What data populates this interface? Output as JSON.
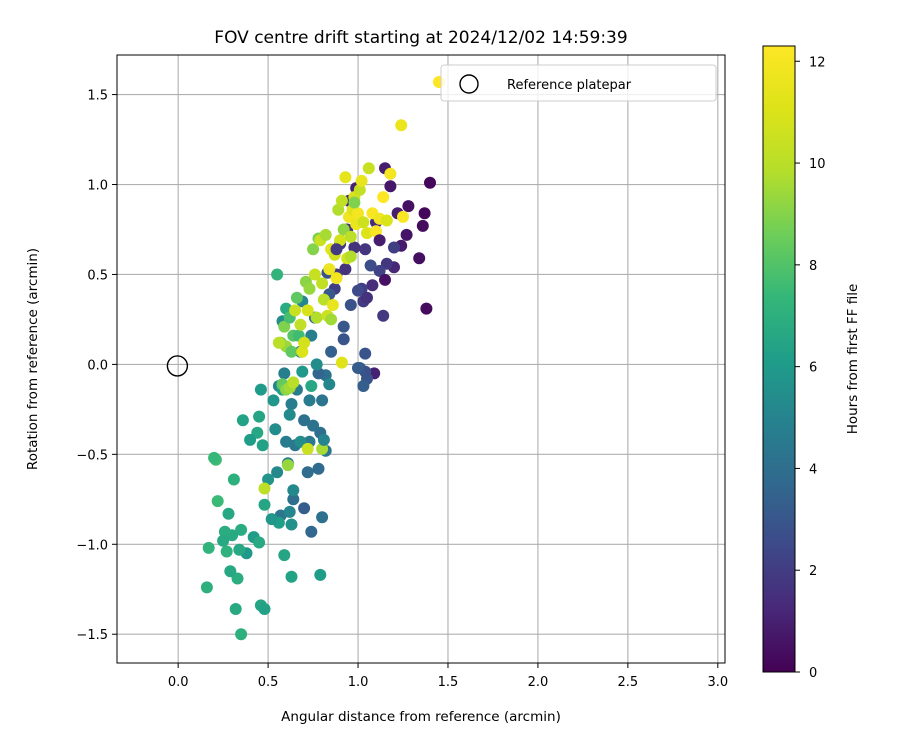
{
  "chart_data": {
    "type": "scatter",
    "title": "FOV centre drift starting at 2024/12/02 14:59:39",
    "xlabel": "Angular distance from reference (arcmin)",
    "ylabel": "Rotation from reference (arcmin)",
    "xlim": [
      -0.34,
      3.04
    ],
    "ylim": [
      -1.66,
      1.72
    ],
    "x_ticks": [
      0.0,
      0.5,
      1.0,
      1.5,
      2.0,
      2.5,
      3.0
    ],
    "x_tick_labels": [
      "0.0",
      "0.5",
      "1.0",
      "1.5",
      "2.0",
      "2.5",
      "3.0"
    ],
    "y_ticks": [
      -1.5,
      -1.0,
      -0.5,
      0.0,
      0.5,
      1.0,
      1.5
    ],
    "y_tick_labels": [
      "−1.5",
      "−1.0",
      "−0.5",
      "0.0",
      "0.5",
      "1.0",
      "1.5"
    ],
    "grid": true,
    "legend": {
      "position": "top-right",
      "entries": [
        "Reference platepar"
      ]
    },
    "reference_point": {
      "x": 0.0,
      "y": 0.0,
      "label": "Reference platepar"
    },
    "colorbar": {
      "label": "Hours from first FF file",
      "colormap": "viridis",
      "range": [
        0,
        12.3
      ],
      "ticks": [
        0,
        2,
        4,
        6,
        8,
        10,
        12
      ],
      "tick_labels": [
        "0",
        "2",
        "4",
        "6",
        "8",
        "10",
        "12"
      ]
    },
    "series": [
      {
        "columns": [
          "x",
          "y",
          "hours"
        ],
        "points": [
          [
            1.4,
            1.01,
            0.2
          ],
          [
            1.38,
            0.31,
            0.3
          ],
          [
            1.37,
            0.84,
            0.2
          ],
          [
            1.36,
            0.77,
            0.3
          ],
          [
            1.34,
            0.59,
            0.4
          ],
          [
            1.28,
            0.88,
            0.5
          ],
          [
            1.27,
            0.72,
            0.6
          ],
          [
            1.24,
            0.66,
            0.8
          ],
          [
            1.22,
            0.84,
            0.9
          ],
          [
            1.2,
            0.54,
            1.2
          ],
          [
            1.18,
            0.99,
            0.7
          ],
          [
            1.16,
            0.56,
            1.8
          ],
          [
            1.15,
            1.09,
            0.9
          ],
          [
            1.14,
            0.27,
            1.8
          ],
          [
            1.12,
            0.52,
            2.2
          ],
          [
            1.1,
            0.79,
            1.3
          ],
          [
            1.09,
            -0.05,
            1.0
          ],
          [
            1.08,
            0.44,
            1.4
          ],
          [
            1.07,
            0.55,
            2.6
          ],
          [
            1.05,
            -0.08,
            2.9
          ],
          [
            1.04,
            0.64,
            1.7
          ],
          [
            1.03,
            0.35,
            1.9
          ],
          [
            1.02,
            0.42,
            2.0
          ],
          [
            1.01,
            -0.02,
            3.1
          ],
          [
            1.04,
            -0.04,
            2.8
          ],
          [
            1.03,
            -0.12,
            3.3
          ],
          [
            1.0,
            0.41,
            2.5
          ],
          [
            0.99,
            0.98,
            1.0
          ],
          [
            0.98,
            0.65,
            1.6
          ],
          [
            0.96,
            0.33,
            2.8
          ],
          [
            0.95,
            0.91,
            1.4
          ],
          [
            0.94,
            0.75,
            1.5
          ],
          [
            0.93,
            0.53,
            1.6
          ],
          [
            0.92,
            0.14,
            2.9
          ],
          [
            0.9,
            0.67,
            1.8
          ],
          [
            0.88,
            0.5,
            1.8
          ],
          [
            0.87,
            0.42,
            2.1
          ],
          [
            0.85,
            0.07,
            3.4
          ],
          [
            0.84,
            0.39,
            3.0
          ],
          [
            0.83,
            0.51,
            2.7
          ],
          [
            0.82,
            -0.06,
            4.1
          ],
          [
            0.8,
            -0.2,
            4.3
          ],
          [
            0.79,
            -0.38,
            4.0
          ],
          [
            0.78,
            -0.05,
            3.6
          ],
          [
            0.76,
            0.26,
            3.9
          ],
          [
            0.75,
            -0.34,
            4.2
          ],
          [
            0.74,
            0.16,
            4.8
          ],
          [
            0.73,
            -0.43,
            4.5
          ],
          [
            0.72,
            -0.6,
            3.9
          ],
          [
            0.7,
            -0.31,
            4.1
          ],
          [
            0.69,
            0.35,
            5.1
          ],
          [
            0.68,
            0.07,
            4.8
          ],
          [
            0.66,
            -0.14,
            4.6
          ],
          [
            0.65,
            -0.45,
            4.4
          ],
          [
            0.64,
            -0.75,
            4.0
          ],
          [
            0.63,
            -0.22,
            4.7
          ],
          [
            0.61,
            -0.55,
            4.8
          ],
          [
            0.6,
            -0.43,
            4.6
          ],
          [
            0.59,
            -0.05,
            4.8
          ],
          [
            0.58,
            0.24,
            5.4
          ],
          [
            0.57,
            -0.84,
            4.3
          ],
          [
            0.56,
            -0.12,
            5.0
          ],
          [
            0.55,
            -0.6,
            5.2
          ],
          [
            0.54,
            -0.36,
            5.4
          ],
          [
            0.53,
            -0.2,
            5.8
          ],
          [
            0.8,
            -0.85,
            4.1
          ],
          [
            0.82,
            -0.48,
            4.3
          ],
          [
            0.78,
            -0.58,
            3.8
          ],
          [
            0.7,
            -0.8,
            3.3
          ],
          [
            0.74,
            -0.93,
            3.7
          ],
          [
            0.62,
            -0.82,
            5.1
          ],
          [
            0.64,
            -0.7,
            5.2
          ],
          [
            0.56,
            -0.88,
            6.2
          ],
          [
            0.52,
            -0.86,
            5.8
          ],
          [
            0.5,
            -0.64,
            5.7
          ],
          [
            0.48,
            -0.78,
            6.5
          ],
          [
            0.47,
            -0.45,
            6.3
          ],
          [
            0.46,
            -0.14,
            6.0
          ],
          [
            0.45,
            -0.29,
            6.5
          ],
          [
            0.44,
            -0.38,
            6.6
          ],
          [
            0.42,
            -0.96,
            6.1
          ],
          [
            0.4,
            -0.42,
            6.1
          ],
          [
            0.38,
            -1.05,
            5.9
          ],
          [
            0.36,
            -0.31,
            6.4
          ],
          [
            0.35,
            -0.92,
            6.8
          ],
          [
            0.34,
            -1.03,
            6.6
          ],
          [
            0.33,
            -1.19,
            6.9
          ],
          [
            0.32,
            -1.36,
            6.7
          ],
          [
            0.31,
            -0.64,
            7.0
          ],
          [
            0.3,
            -0.95,
            6.7
          ],
          [
            0.29,
            -1.15,
            6.6
          ],
          [
            0.28,
            -0.83,
            6.6
          ],
          [
            0.27,
            -1.04,
            7.1
          ],
          [
            0.26,
            -0.93,
            6.9
          ],
          [
            0.25,
            -0.98,
            6.7
          ],
          [
            0.22,
            -0.76,
            7.5
          ],
          [
            0.21,
            -0.53,
            7.6
          ],
          [
            0.2,
            -0.52,
            7.4
          ],
          [
            0.17,
            -1.02,
            7.2
          ],
          [
            0.16,
            -1.24,
            7.0
          ],
          [
            0.35,
            -1.5,
            7.0
          ],
          [
            0.46,
            -1.34,
            6.5
          ],
          [
            0.48,
            -1.36,
            6.3
          ],
          [
            0.63,
            -1.18,
            6.4
          ],
          [
            0.79,
            -1.17,
            6.1
          ],
          [
            0.59,
            -1.06,
            6.5
          ],
          [
            0.45,
            -0.99,
            6.7
          ],
          [
            0.63,
            -0.89,
            5.6
          ],
          [
            0.68,
            -0.43,
            5.4
          ],
          [
            0.62,
            -0.28,
            5.3
          ],
          [
            0.6,
            0.31,
            6.8
          ],
          [
            0.58,
            -0.14,
            6.3
          ],
          [
            0.55,
            0.5,
            7.2
          ],
          [
            0.57,
            0.12,
            8.7
          ],
          [
            0.58,
            -0.11,
            8.4
          ],
          [
            0.6,
            -0.14,
            9.1
          ],
          [
            0.62,
            -0.13,
            9.5
          ],
          [
            0.64,
            -0.1,
            10.0
          ],
          [
            0.59,
            0.21,
            8.9
          ],
          [
            0.6,
            0.1,
            9.4
          ],
          [
            0.62,
            0.26,
            7.8
          ],
          [
            0.63,
            0.07,
            8.3
          ],
          [
            0.64,
            0.16,
            8.1
          ],
          [
            0.65,
            0.3,
            10.5
          ],
          [
            0.66,
            0.37,
            8.3
          ],
          [
            0.67,
            0.16,
            7.6
          ],
          [
            0.68,
            0.22,
            10.2
          ],
          [
            0.69,
            0.07,
            11.0
          ],
          [
            0.7,
            0.12,
            10.8
          ],
          [
            0.71,
            0.46,
            9.1
          ],
          [
            0.72,
            0.3,
            10.9
          ],
          [
            0.73,
            0.42,
            9.3
          ],
          [
            0.74,
            -0.12,
            6.6
          ],
          [
            0.75,
            0.64,
            9.0
          ],
          [
            0.76,
            0.5,
            10.4
          ],
          [
            0.77,
            0.26,
            9.8
          ],
          [
            0.78,
            0.7,
            8.8
          ],
          [
            0.79,
            0.69,
            10.5
          ],
          [
            0.8,
            0.45,
            10.2
          ],
          [
            0.81,
            0.36,
            10.0
          ],
          [
            0.82,
            0.72,
            9.6
          ],
          [
            0.83,
            0.27,
            10.6
          ],
          [
            0.84,
            0.53,
            11.7
          ],
          [
            0.85,
            0.64,
            11.3
          ],
          [
            0.86,
            0.33,
            11.5
          ],
          [
            0.87,
            0.61,
            10.7
          ],
          [
            0.88,
            0.48,
            11.9
          ],
          [
            0.89,
            0.86,
            9.8
          ],
          [
            0.9,
            0.69,
            10.8
          ],
          [
            0.91,
            0.91,
            10.2
          ],
          [
            0.92,
            0.75,
            9.2
          ],
          [
            0.93,
            1.04,
            11.4
          ],
          [
            0.94,
            0.59,
            10.8
          ],
          [
            0.95,
            0.82,
            11.8
          ],
          [
            0.96,
            0.71,
            10.1
          ],
          [
            0.97,
            0.86,
            11.2
          ],
          [
            0.98,
            0.93,
            10.9
          ],
          [
            0.99,
            0.78,
            11.6
          ],
          [
            1.0,
            0.84,
            11.9
          ],
          [
            1.01,
            0.97,
            10.3
          ],
          [
            1.02,
            1.02,
            11.5
          ],
          [
            1.03,
            0.79,
            10.6
          ],
          [
            1.05,
            0.73,
            11.1
          ],
          [
            1.06,
            1.09,
            10.4
          ],
          [
            1.08,
            0.84,
            12.1
          ],
          [
            1.1,
            0.74,
            12.2
          ],
          [
            1.12,
            0.81,
            11.8
          ],
          [
            1.14,
            0.93,
            12.3
          ],
          [
            1.16,
            0.8,
            11.0
          ],
          [
            1.18,
            1.06,
            11.9
          ],
          [
            1.24,
            1.33,
            11.6
          ],
          [
            1.25,
            0.82,
            12.2
          ],
          [
            1.45,
            1.57,
            12.3
          ],
          [
            0.91,
            0.01,
            11.2
          ],
          [
            0.8,
            -0.47,
            9.6
          ],
          [
            0.72,
            -0.47,
            10.5
          ],
          [
            0.48,
            -0.69,
            10.1
          ],
          [
            0.61,
            -0.56,
            9.3
          ],
          [
            0.56,
            0.12,
            10.0
          ],
          [
            0.96,
            0.6,
            9.8
          ],
          [
            0.85,
            0.25,
            9.5
          ],
          [
            0.98,
            0.9,
            8.9
          ],
          [
            1.0,
            -0.02,
            3.2
          ],
          [
            1.04,
            0.06,
            2.9
          ],
          [
            0.92,
            0.21,
            3.0
          ],
          [
            0.88,
            0.64,
            1.9
          ],
          [
            1.12,
            0.69,
            0.9
          ],
          [
            1.15,
            0.47,
            0.5
          ],
          [
            1.2,
            0.65,
            2.1
          ],
          [
            1.05,
            0.37,
            1.6
          ],
          [
            0.77,
            0.0,
            5.4
          ],
          [
            0.69,
            -0.04,
            5.9
          ],
          [
            0.84,
            -0.11,
            5.1
          ],
          [
            0.81,
            -0.42,
            5.0
          ],
          [
            0.73,
            -0.2,
            4.6
          ]
        ]
      }
    ]
  }
}
